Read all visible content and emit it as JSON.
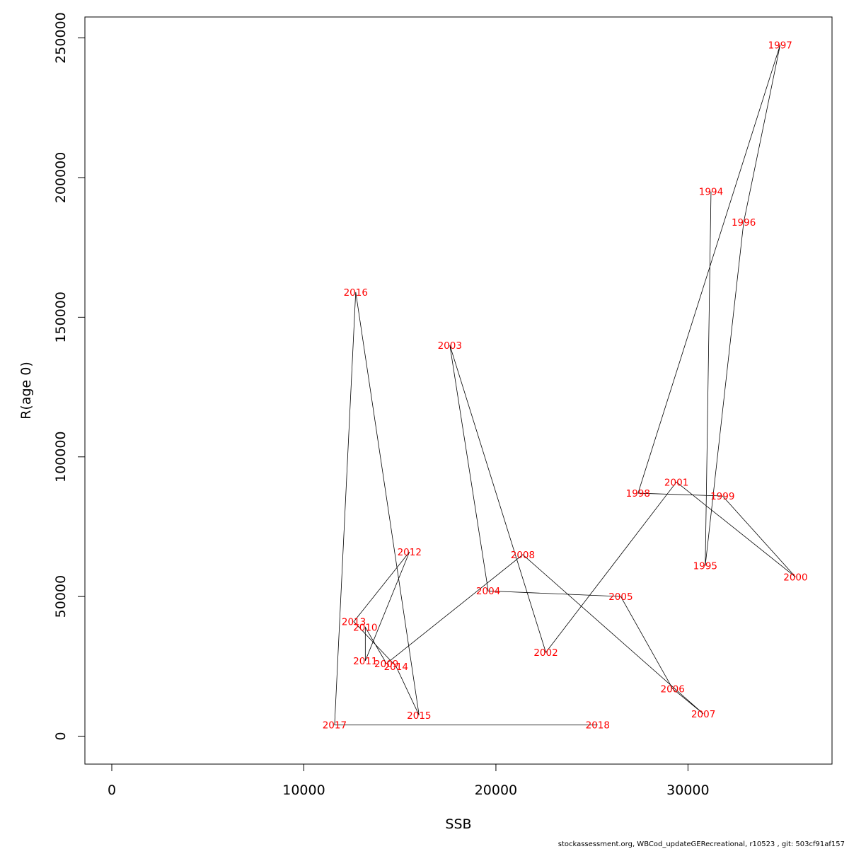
{
  "chart_data": {
    "type": "line",
    "xlabel": "SSB",
    "ylabel": "R(age 0)",
    "xlim": [
      -1400,
      37500
    ],
    "ylim": [
      -10000,
      257500
    ],
    "x_ticks": [
      0,
      10000,
      20000,
      30000
    ],
    "y_ticks": [
      0,
      50000,
      100000,
      150000,
      200000,
      250000
    ],
    "grid": false,
    "label_color": "#ff0000",
    "line_color": "#000000",
    "points": [
      {
        "label": "1994",
        "x": 31200,
        "y": 195000
      },
      {
        "label": "1995",
        "x": 30900,
        "y": 61000
      },
      {
        "label": "1996",
        "x": 32900,
        "y": 184000
      },
      {
        "label": "1997",
        "x": 34800,
        "y": 247500
      },
      {
        "label": "1998",
        "x": 27400,
        "y": 87000
      },
      {
        "label": "1999",
        "x": 31800,
        "y": 86000
      },
      {
        "label": "2000",
        "x": 35600,
        "y": 57000
      },
      {
        "label": "2001",
        "x": 29400,
        "y": 91000
      },
      {
        "label": "2002",
        "x": 22600,
        "y": 30000
      },
      {
        "label": "2003",
        "x": 17600,
        "y": 140000
      },
      {
        "label": "2004",
        "x": 19600,
        "y": 52000
      },
      {
        "label": "2005",
        "x": 26500,
        "y": 50000
      },
      {
        "label": "2006",
        "x": 29200,
        "y": 17000
      },
      {
        "label": "2007",
        "x": 30800,
        "y": 8000
      },
      {
        "label": "2008",
        "x": 21400,
        "y": 65000
      },
      {
        "label": "2009",
        "x": 14300,
        "y": 26000
      },
      {
        "label": "2010",
        "x": 13200,
        "y": 39000
      },
      {
        "label": "2011",
        "x": 13200,
        "y": 27000
      },
      {
        "label": "2012",
        "x": 15500,
        "y": 66000
      },
      {
        "label": "2013",
        "x": 12600,
        "y": 41000
      },
      {
        "label": "2014",
        "x": 14800,
        "y": 25000
      },
      {
        "label": "2015",
        "x": 16000,
        "y": 7500
      },
      {
        "label": "2016",
        "x": 12700,
        "y": 159000
      },
      {
        "label": "2017",
        "x": 11600,
        "y": 4000
      },
      {
        "label": "2018",
        "x": 25300,
        "y": 4000
      }
    ]
  },
  "footer": {
    "text": "stockassessment.org, WBCod_updateGERecreational, r10523 , git: 503cf91af157"
  }
}
